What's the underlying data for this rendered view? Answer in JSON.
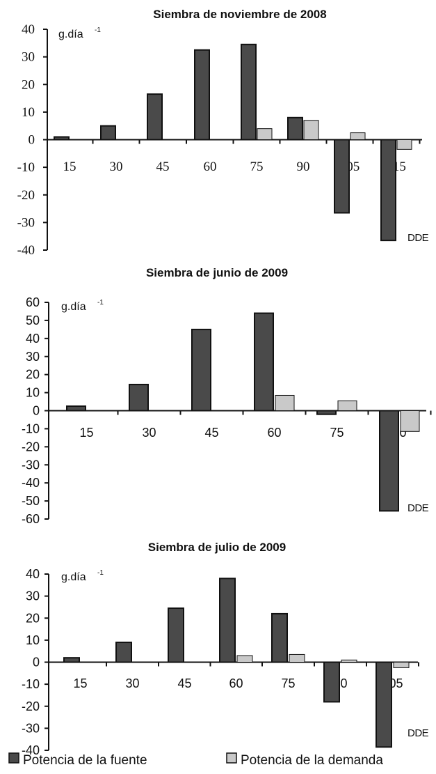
{
  "chart_data": [
    {
      "type": "bar",
      "title": "Siembra de noviembre de 2008",
      "unit_label": "g.día",
      "unit_sup": "-1",
      "xlabel": "DDE",
      "categories": [
        "15",
        "30",
        "45",
        "60",
        "75",
        "90",
        "105",
        "115"
      ],
      "ylim": [
        -40,
        40
      ],
      "yticks": [
        "40",
        "30",
        "20",
        "10",
        "0",
        "-10",
        "-20",
        "-30",
        "-40"
      ],
      "series": [
        {
          "name": "Potencia de la fuente",
          "values": [
            1,
            5,
            16.5,
            32.5,
            34.5,
            8,
            -26.5,
            -36.5
          ],
          "color": "#4a4a4a"
        },
        {
          "name": "Potencia de la demanda",
          "values": [
            0,
            0,
            0,
            0,
            4,
            7,
            2.5,
            -3.5
          ],
          "color": "#c9c9c9"
        }
      ]
    },
    {
      "type": "bar",
      "title": "Siembra de junio de 2009",
      "unit_label": "g.día",
      "unit_sup": "-1",
      "xlabel": "DDE",
      "categories": [
        "15",
        "30",
        "45",
        "60",
        "75",
        "90"
      ],
      "ylim": [
        -60,
        60
      ],
      "yticks": [
        "60",
        "50",
        "40",
        "30",
        "20",
        "10",
        "0",
        "-10",
        "-20",
        "-30",
        "-40",
        "-50",
        "-60"
      ],
      "series": [
        {
          "name": "Potencia de la fuente",
          "values": [
            2.5,
            14.5,
            45,
            54,
            -2,
            -55.5
          ],
          "color": "#4a4a4a"
        },
        {
          "name": "Potencia de la demanda",
          "values": [
            0,
            0,
            0,
            8.5,
            5.5,
            -11.5
          ],
          "color": "#c9c9c9"
        }
      ]
    },
    {
      "type": "bar",
      "title": "Siembra de julio de 2009",
      "unit_label": "g.día",
      "unit_sup": "-1",
      "xlabel": "DDE",
      "categories": [
        "15",
        "30",
        "45",
        "60",
        "75",
        "90",
        "105"
      ],
      "ylim": [
        -40,
        40
      ],
      "yticks": [
        "40",
        "30",
        "20",
        "10",
        "0",
        "-10",
        "-20",
        "-30",
        "-40"
      ],
      "series": [
        {
          "name": "Potencia de la fuente",
          "values": [
            2,
            9,
            24.5,
            38,
            22,
            -18,
            -38.5
          ],
          "color": "#4a4a4a"
        },
        {
          "name": "Potencia de la demanda",
          "values": [
            0,
            0,
            0,
            3,
            3.5,
            1,
            -2.5
          ],
          "color": "#c9c9c9"
        }
      ]
    }
  ],
  "legend": {
    "items": [
      {
        "label": "Potencia de la fuente",
        "color": "#4a4a4a"
      },
      {
        "label": "Potencia de la demanda",
        "color": "#c9c9c9"
      }
    ]
  }
}
